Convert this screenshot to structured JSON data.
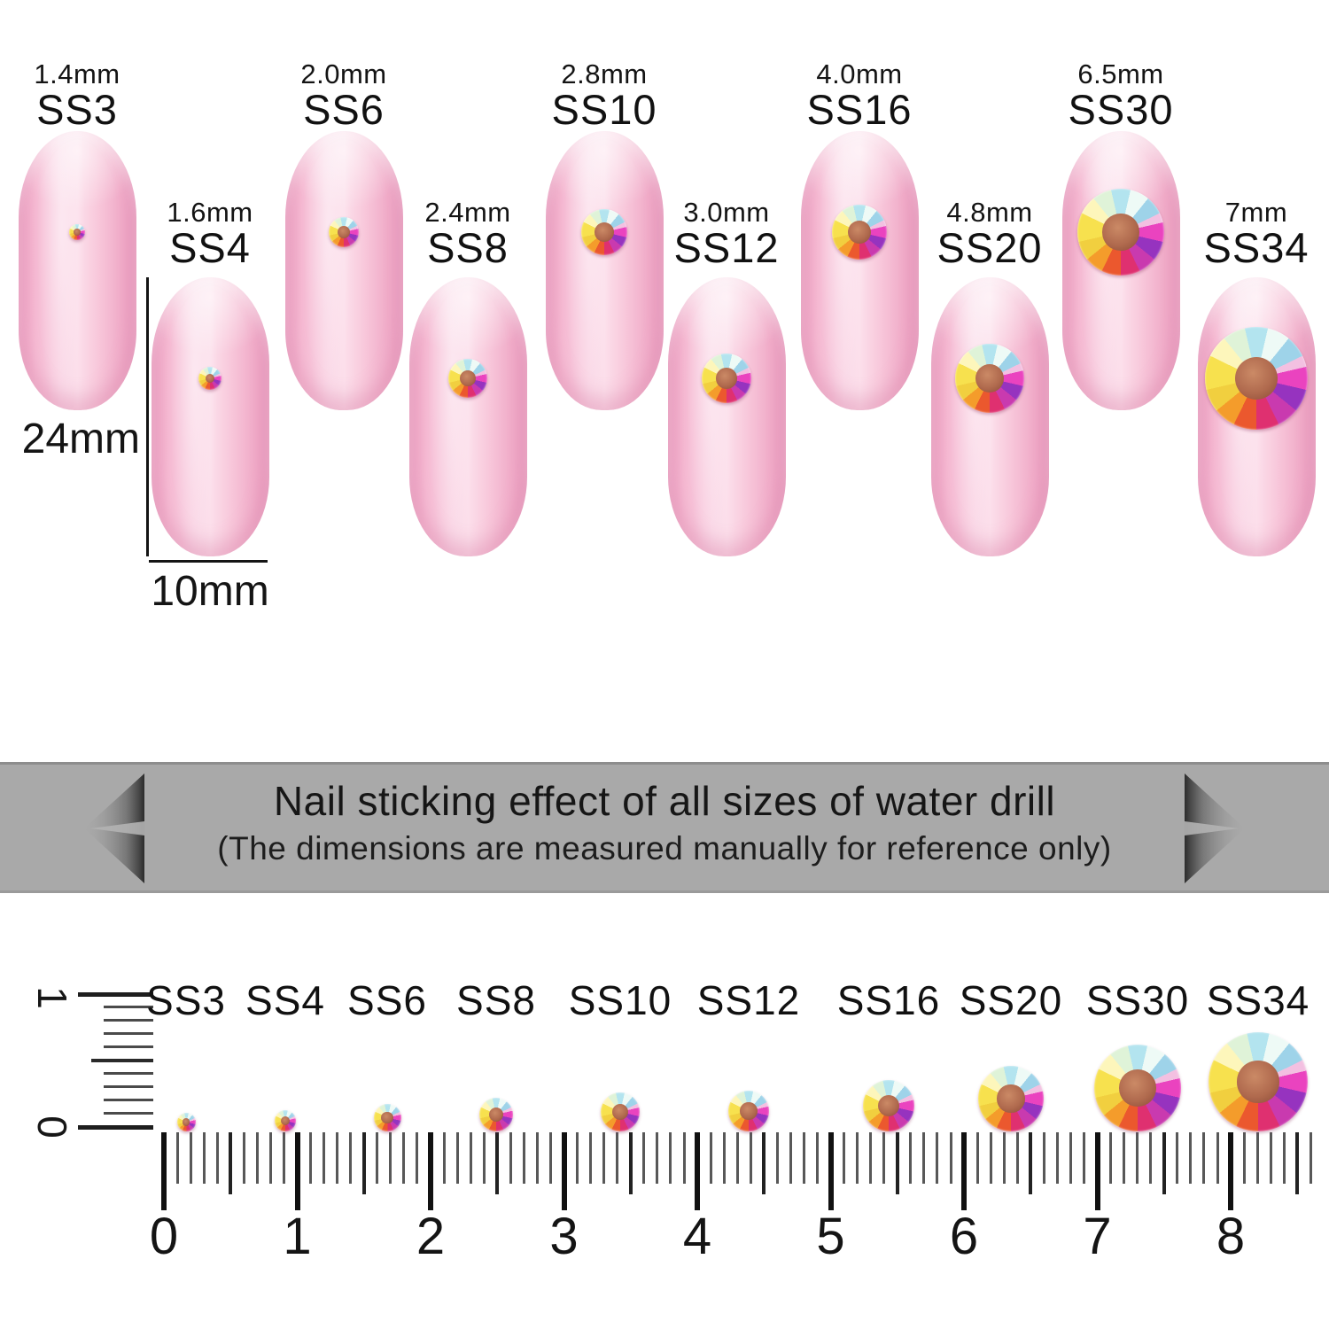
{
  "sizes": [
    {
      "code": "SS3",
      "size_label": "1.4mm"
    },
    {
      "code": "SS4",
      "size_label": "1.6mm"
    },
    {
      "code": "SS6",
      "size_label": "2.0mm"
    },
    {
      "code": "SS8",
      "size_label": "2.4mm"
    },
    {
      "code": "SS10",
      "size_label": "2.8mm"
    },
    {
      "code": "SS12",
      "size_label": "3.0mm"
    },
    {
      "code": "SS16",
      "size_label": "4.0mm"
    },
    {
      "code": "SS20",
      "size_label": "4.8mm"
    },
    {
      "code": "SS30",
      "size_label": "6.5mm"
    },
    {
      "code": "SS34",
      "size_label": "7mm"
    }
  ],
  "nail_dimensions": {
    "length": "24mm",
    "width": "10mm"
  },
  "banner": {
    "title": "Nail sticking effect of all sizes of water drill",
    "subtitle": "(The dimensions are measured manually for reference only)"
  },
  "ruler": {
    "unit_labels": [
      "0",
      "1",
      "2",
      "3",
      "4",
      "5",
      "6",
      "7",
      "8"
    ],
    "vertical_ruler": {
      "top_label": "1",
      "bottom_label": "0"
    }
  },
  "colors": {
    "nail_pink": "#f7c3d8",
    "banner_gray": "#a9a9a9",
    "stone_center_brown": "#ad6a52",
    "text_black": "#1a1a1a"
  }
}
